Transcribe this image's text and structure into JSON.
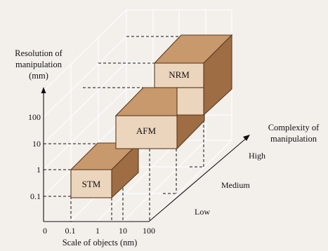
{
  "chart_data": {
    "type": "3d-bar",
    "title": "",
    "xlabel": "Scale of objects (nm)",
    "ylabel": "Resolution of manipulation (mm)",
    "zlabel": "Complexity of manipulation",
    "x_ticks": [
      "0",
      "0.1",
      "1",
      "10",
      "100"
    ],
    "y_ticks": [
      "0.1",
      "1",
      "10",
      "100"
    ],
    "z_ticks": [
      "Low",
      "Medium",
      "High"
    ],
    "boxes": [
      {
        "name": "STM",
        "scale_range": [
          "0.1",
          "10"
        ],
        "resolution_range": [
          "0.1",
          "1"
        ],
        "complexity_range": [
          "Low",
          "Medium"
        ]
      },
      {
        "name": "AFM",
        "scale_range": [
          "1",
          "100"
        ],
        "resolution_range": [
          "1",
          "100"
        ],
        "complexity_range": [
          "Medium",
          "High"
        ]
      },
      {
        "name": "NRM",
        "scale_range": [
          "10",
          "100"
        ],
        "resolution_range": [
          "100",
          "100"
        ],
        "complexity_range": [
          "High",
          "High"
        ]
      }
    ],
    "colors": {
      "front": "#ecd5bd",
      "top": "#c8996c",
      "side": "#9f6d43",
      "grid": "#ffffff",
      "background": "#f3f0ec"
    }
  }
}
